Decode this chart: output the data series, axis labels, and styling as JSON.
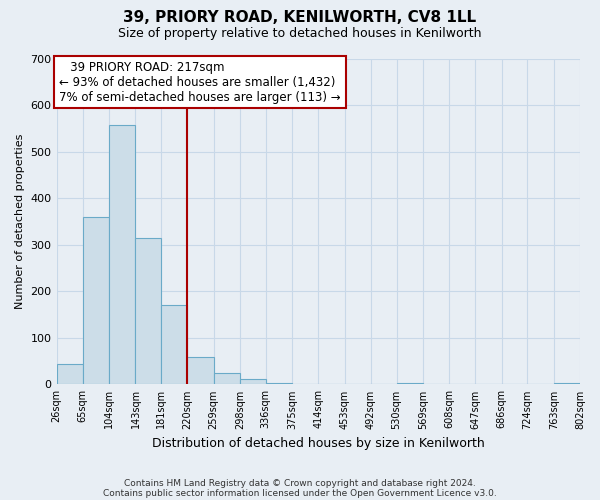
{
  "title": "39, PRIORY ROAD, KENILWORTH, CV8 1LL",
  "subtitle": "Size of property relative to detached houses in Kenilworth",
  "xlabel": "Distribution of detached houses by size in Kenilworth",
  "ylabel": "Number of detached properties",
  "bar_edges": [
    26,
    65,
    104,
    143,
    181,
    220,
    259,
    298,
    336,
    375,
    414,
    453,
    492,
    530,
    569,
    608,
    647,
    686,
    724,
    763,
    802
  ],
  "bar_heights": [
    45,
    360,
    558,
    315,
    170,
    60,
    25,
    12,
    4,
    0,
    0,
    0,
    0,
    3,
    0,
    0,
    0,
    0,
    0,
    4
  ],
  "bar_color": "#ccdde8",
  "bar_edge_color": "#6aaac8",
  "reference_line_x": 220,
  "reference_line_color": "#aa0000",
  "ylim": [
    0,
    700
  ],
  "yticks": [
    0,
    100,
    200,
    300,
    400,
    500,
    600,
    700
  ],
  "tick_labels": [
    "26sqm",
    "65sqm",
    "104sqm",
    "143sqm",
    "181sqm",
    "220sqm",
    "259sqm",
    "298sqm",
    "336sqm",
    "375sqm",
    "414sqm",
    "453sqm",
    "492sqm",
    "530sqm",
    "569sqm",
    "608sqm",
    "647sqm",
    "686sqm",
    "724sqm",
    "763sqm",
    "802sqm"
  ],
  "annotation_title": "39 PRIORY ROAD: 217sqm",
  "annotation_line1": "← 93% of detached houses are smaller (1,432)",
  "annotation_line2": "7% of semi-detached houses are larger (113) →",
  "annotation_box_color": "#ffffff",
  "annotation_box_edge": "#aa0000",
  "footnote1": "Contains HM Land Registry data © Crown copyright and database right 2024.",
  "footnote2": "Contains public sector information licensed under the Open Government Licence v3.0.",
  "bg_color": "#e8eef4",
  "grid_color": "#c8d8e8",
  "xlim": [
    26,
    802
  ]
}
